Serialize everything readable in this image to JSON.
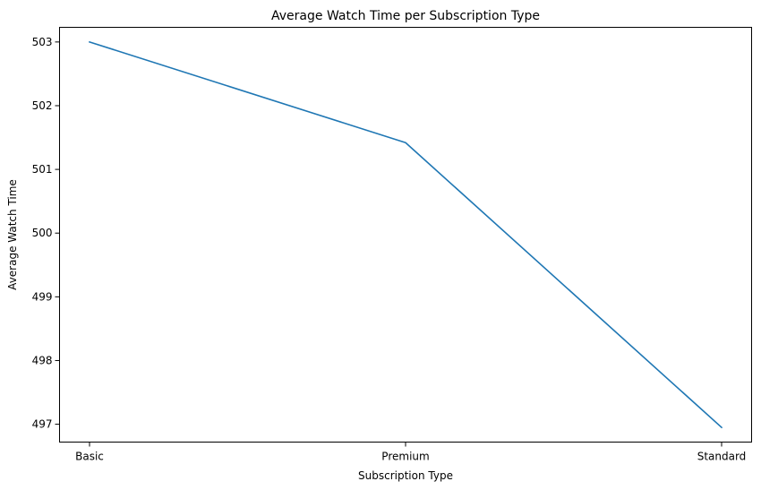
{
  "chart_data": {
    "type": "line",
    "title": "Average Watch Time per Subscription Type",
    "xlabel": "Subscription Type",
    "ylabel": "Average Watch Time",
    "categories": [
      "Basic",
      "Premium",
      "Standard"
    ],
    "series": [
      {
        "values": [
          503.0,
          501.42,
          496.95
        ],
        "color": "#1f77b4"
      }
    ],
    "ylim": [
      496.72,
      503.23
    ],
    "yticks": [
      497,
      498,
      499,
      500,
      501,
      502,
      503
    ],
    "grid": false,
    "legend": "none"
  }
}
